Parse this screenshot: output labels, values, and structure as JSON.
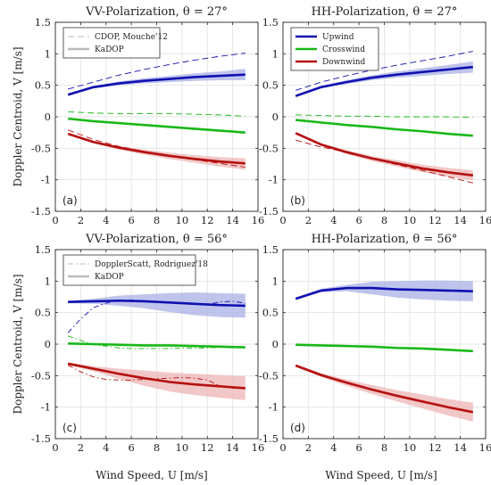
{
  "colors": {
    "upwind": "#1010b0",
    "upwind_band": "#aab0e6",
    "crosswind": "#18b818",
    "downwind": "#b51010",
    "downwind_band": "#edb4b4",
    "grid": "#e6e6e6",
    "axis": "#262626",
    "reference_gray": "#bbbbbb"
  },
  "figure": {
    "ylabel": "Doppler Centroid, V [m/s]",
    "xlabel": "Wind Speed, U [m/s]"
  },
  "chart_data": [
    {
      "type": "line",
      "id": "a",
      "panel_label": "(a)",
      "title": "VV-Polarization, θ = 27°",
      "xlim": [
        0,
        16
      ],
      "ylim": [
        -1.5,
        1.5
      ],
      "xticks": [
        "0",
        "2",
        "4",
        "6",
        "8",
        "10",
        "12",
        "14",
        "16"
      ],
      "yticks": [
        "-1.5",
        "-1",
        "-0.5",
        "0",
        "0.5",
        "1",
        "1.5"
      ],
      "grid": true,
      "legend": {
        "position": "top-left",
        "entries": [
          {
            "label": "CDOP, Mouche'12",
            "style": "dashed"
          },
          {
            "label": "KaDOP",
            "style": "solid"
          }
        ]
      },
      "series": [
        {
          "group": "upwind",
          "kind": "kadop",
          "x": [
            1,
            3,
            5,
            7,
            9,
            11,
            13,
            15
          ],
          "values": [
            0.35,
            0.47,
            0.53,
            0.57,
            0.6,
            0.63,
            0.65,
            0.67
          ],
          "band": [
            [
              0.33,
              0.37
            ],
            [
              0.45,
              0.49
            ],
            [
              0.5,
              0.56
            ],
            [
              0.53,
              0.61
            ],
            [
              0.55,
              0.65
            ],
            [
              0.57,
              0.69
            ],
            [
              0.58,
              0.72
            ],
            [
              0.58,
              0.76
            ]
          ]
        },
        {
          "group": "crosswind",
          "kind": "kadop",
          "x": [
            1,
            3,
            5,
            7,
            9,
            11,
            13,
            15
          ],
          "values": [
            -0.03,
            -0.07,
            -0.1,
            -0.13,
            -0.16,
            -0.19,
            -0.22,
            -0.25
          ]
        },
        {
          "group": "downwind",
          "kind": "kadop",
          "x": [
            1,
            3,
            5,
            7,
            9,
            11,
            13,
            15
          ],
          "values": [
            -0.27,
            -0.4,
            -0.49,
            -0.56,
            -0.62,
            -0.67,
            -0.71,
            -0.74
          ],
          "band": [
            [
              -0.25,
              -0.29
            ],
            [
              -0.38,
              -0.42
            ],
            [
              -0.46,
              -0.52
            ],
            [
              -0.52,
              -0.6
            ],
            [
              -0.57,
              -0.67
            ],
            [
              -0.61,
              -0.73
            ],
            [
              -0.64,
              -0.79
            ],
            [
              -0.66,
              -0.84
            ]
          ]
        },
        {
          "group": "upwind",
          "kind": "reference",
          "x": [
            1,
            3,
            5,
            7,
            9,
            11,
            13,
            15
          ],
          "values": [
            0.44,
            0.55,
            0.66,
            0.75,
            0.83,
            0.9,
            0.96,
            1.01
          ]
        },
        {
          "group": "crosswind",
          "kind": "reference",
          "x": [
            1,
            3,
            5,
            7,
            9,
            11,
            13,
            15
          ],
          "values": [
            0.08,
            0.06,
            0.05,
            0.05,
            0.05,
            0.04,
            0.03,
            0.01
          ]
        },
        {
          "group": "downwind",
          "kind": "reference",
          "x": [
            1,
            3,
            5,
            7,
            9,
            11,
            13,
            15
          ],
          "values": [
            -0.21,
            -0.36,
            -0.47,
            -0.55,
            -0.62,
            -0.68,
            -0.74,
            -0.8
          ]
        }
      ]
    },
    {
      "type": "line",
      "id": "b",
      "panel_label": "(b)",
      "title": "HH-Polarization, θ = 27°",
      "xlim": [
        0,
        16
      ],
      "ylim": [
        -1.5,
        1.5
      ],
      "xticks": [
        "0",
        "2",
        "4",
        "6",
        "8",
        "10",
        "12",
        "14",
        "16"
      ],
      "yticks": [
        "-1.5",
        "-1",
        "-0.5",
        "0",
        "0.5",
        "1",
        "1.5"
      ],
      "grid": true,
      "legend": {
        "position": "top-left",
        "entries": [
          {
            "label": "Upwind",
            "group": "upwind"
          },
          {
            "label": "Crosswind",
            "group": "crosswind"
          },
          {
            "label": "Downwind",
            "group": "downwind"
          }
        ]
      },
      "series": [
        {
          "group": "upwind",
          "kind": "kadop",
          "x": [
            1,
            3,
            5,
            7,
            9,
            11,
            13,
            15
          ],
          "values": [
            0.33,
            0.47,
            0.55,
            0.62,
            0.67,
            0.71,
            0.75,
            0.79
          ],
          "band": [
            [
              0.31,
              0.35
            ],
            [
              0.45,
              0.49
            ],
            [
              0.52,
              0.58
            ],
            [
              0.58,
              0.66
            ],
            [
              0.62,
              0.72
            ],
            [
              0.65,
              0.77
            ],
            [
              0.68,
              0.82
            ],
            [
              0.7,
              0.88
            ]
          ]
        },
        {
          "group": "crosswind",
          "kind": "kadop",
          "x": [
            1,
            3,
            5,
            7,
            9,
            11,
            13,
            15
          ],
          "values": [
            -0.05,
            -0.09,
            -0.13,
            -0.16,
            -0.2,
            -0.23,
            -0.27,
            -0.3
          ]
        },
        {
          "group": "downwind",
          "kind": "kadop",
          "x": [
            1,
            3,
            5,
            7,
            9,
            11,
            13,
            15
          ],
          "values": [
            -0.26,
            -0.44,
            -0.56,
            -0.66,
            -0.74,
            -0.82,
            -0.88,
            -0.93
          ],
          "band": [
            [
              -0.24,
              -0.28
            ],
            [
              -0.42,
              -0.46
            ],
            [
              -0.53,
              -0.59
            ],
            [
              -0.62,
              -0.7
            ],
            [
              -0.69,
              -0.79
            ],
            [
              -0.76,
              -0.88
            ],
            [
              -0.81,
              -0.95
            ],
            [
              -0.85,
              -1.01
            ]
          ]
        },
        {
          "group": "upwind",
          "kind": "reference",
          "x": [
            1,
            3,
            5,
            7,
            9,
            11,
            13,
            15
          ],
          "values": [
            0.42,
            0.55,
            0.65,
            0.74,
            0.82,
            0.89,
            0.96,
            1.04
          ]
        },
        {
          "group": "crosswind",
          "kind": "reference",
          "x": [
            1,
            3,
            5,
            7,
            9,
            11,
            13,
            15
          ],
          "values": [
            0.03,
            0.02,
            0.01,
            0.01,
            0.0,
            0.0,
            0.0,
            -0.01
          ]
        },
        {
          "group": "downwind",
          "kind": "reference",
          "x": [
            1,
            3,
            5,
            7,
            9,
            11,
            13,
            15
          ],
          "values": [
            -0.37,
            -0.48,
            -0.56,
            -0.66,
            -0.76,
            -0.85,
            -0.95,
            -1.05
          ]
        }
      ]
    },
    {
      "type": "line",
      "id": "c",
      "panel_label": "(c)",
      "title": "VV-Polarization, θ = 56°",
      "xlim": [
        0,
        16
      ],
      "ylim": [
        -1.5,
        1.5
      ],
      "xticks": [
        "0",
        "2",
        "4",
        "6",
        "8",
        "10",
        "12",
        "14",
        "16"
      ],
      "yticks": [
        "-1.5",
        "-1",
        "-0.5",
        "0",
        "0.5",
        "1",
        "1.5"
      ],
      "grid": true,
      "legend": {
        "position": "top-left",
        "entries": [
          {
            "label": "DopplerScatt, Rodriguez'18",
            "style": "dashdot"
          },
          {
            "label": "KaDOP",
            "style": "solid"
          }
        ]
      },
      "series": [
        {
          "group": "upwind",
          "kind": "kadop",
          "x": [
            1,
            3,
            5,
            7,
            9,
            11,
            13,
            15
          ],
          "values": [
            0.67,
            0.68,
            0.69,
            0.68,
            0.66,
            0.64,
            0.62,
            0.61
          ],
          "band": [
            [
              0.65,
              0.69
            ],
            [
              0.64,
              0.72
            ],
            [
              0.61,
              0.77
            ],
            [
              0.57,
              0.79
            ],
            [
              0.51,
              0.81
            ],
            [
              0.46,
              0.82
            ],
            [
              0.43,
              0.81
            ],
            [
              0.42,
              0.8
            ]
          ]
        },
        {
          "group": "crosswind",
          "kind": "kadop",
          "x": [
            1,
            3,
            5,
            7,
            9,
            11,
            13,
            15
          ],
          "values": [
            0.01,
            0.0,
            -0.01,
            -0.02,
            -0.02,
            -0.03,
            -0.04,
            -0.05
          ]
        },
        {
          "group": "downwind",
          "kind": "kadop",
          "x": [
            1,
            3,
            5,
            7,
            9,
            11,
            13,
            15
          ],
          "values": [
            -0.31,
            -0.39,
            -0.47,
            -0.54,
            -0.6,
            -0.64,
            -0.67,
            -0.7
          ],
          "band": [
            [
              -0.29,
              -0.33
            ],
            [
              -0.35,
              -0.43
            ],
            [
              -0.39,
              -0.55
            ],
            [
              -0.42,
              -0.66
            ],
            [
              -0.45,
              -0.75
            ],
            [
              -0.47,
              -0.81
            ],
            [
              -0.49,
              -0.85
            ],
            [
              -0.51,
              -0.89
            ]
          ]
        },
        {
          "group": "upwind",
          "kind": "reference",
          "x": [
            1,
            2,
            3,
            4,
            5,
            6,
            7,
            8,
            9,
            10,
            11,
            12,
            13,
            14,
            15
          ],
          "values": [
            0.18,
            0.4,
            0.58,
            0.65,
            0.7,
            0.7,
            0.69,
            0.67,
            0.66,
            0.66,
            0.64,
            0.63,
            0.67,
            0.68,
            0.65
          ]
        },
        {
          "group": "crosswind",
          "kind": "reference",
          "x": [
            1,
            2,
            3,
            4,
            5,
            6,
            7,
            8,
            9,
            10,
            11,
            12,
            13,
            14,
            15
          ],
          "values": [
            0.13,
            0.06,
            -0.01,
            -0.03,
            -0.06,
            -0.07,
            -0.07,
            -0.07,
            -0.07,
            -0.06,
            -0.06,
            -0.06,
            -0.05,
            -0.05,
            -0.05
          ]
        },
        {
          "group": "downwind",
          "kind": "reference",
          "x": [
            1,
            2,
            3,
            4,
            5,
            6,
            7,
            8,
            9,
            10,
            11,
            12,
            13,
            14,
            15
          ],
          "values": [
            -0.33,
            -0.44,
            -0.52,
            -0.56,
            -0.57,
            -0.57,
            -0.56,
            -0.55,
            -0.54,
            -0.53,
            -0.54,
            -0.57,
            -0.66,
            -0.7,
            -0.7
          ]
        }
      ]
    },
    {
      "type": "line",
      "id": "d",
      "panel_label": "(d)",
      "title": "HH-Polarization, θ = 56°",
      "xlim": [
        0,
        16
      ],
      "ylim": [
        -1.5,
        1.5
      ],
      "xticks": [
        "0",
        "2",
        "4",
        "6",
        "8",
        "10",
        "12",
        "14",
        "16"
      ],
      "yticks": [
        "-1.5",
        "-1",
        "-0.5",
        "0",
        "0.5",
        "1",
        "1.5"
      ],
      "grid": true,
      "series": [
        {
          "group": "upwind",
          "kind": "kadop",
          "x": [
            1,
            3,
            5,
            7,
            9,
            11,
            13,
            15
          ],
          "values": [
            0.72,
            0.85,
            0.89,
            0.89,
            0.87,
            0.86,
            0.85,
            0.84
          ],
          "band": [
            [
              0.7,
              0.74
            ],
            [
              0.82,
              0.88
            ],
            [
              0.84,
              0.94
            ],
            [
              0.79,
              0.99
            ],
            [
              0.74,
              1.0
            ],
            [
              0.71,
              1.01
            ],
            [
              0.69,
              1.01
            ],
            [
              0.68,
              1.0
            ]
          ]
        },
        {
          "group": "crosswind",
          "kind": "kadop",
          "x": [
            1,
            3,
            5,
            7,
            9,
            11,
            13,
            15
          ],
          "values": [
            -0.01,
            -0.02,
            -0.03,
            -0.04,
            -0.06,
            -0.07,
            -0.09,
            -0.11
          ]
        },
        {
          "group": "downwind",
          "kind": "kadop",
          "x": [
            1,
            3,
            5,
            7,
            9,
            11,
            13,
            15
          ],
          "values": [
            -0.34,
            -0.49,
            -0.61,
            -0.72,
            -0.82,
            -0.91,
            -1.0,
            -1.08
          ],
          "band": [
            [
              -0.32,
              -0.36
            ],
            [
              -0.46,
              -0.52
            ],
            [
              -0.56,
              -0.66
            ],
            [
              -0.65,
              -0.79
            ],
            [
              -0.73,
              -0.91
            ],
            [
              -0.8,
              -1.02
            ],
            [
              -0.87,
              -1.13
            ],
            [
              -0.93,
              -1.23
            ]
          ]
        }
      ]
    }
  ]
}
